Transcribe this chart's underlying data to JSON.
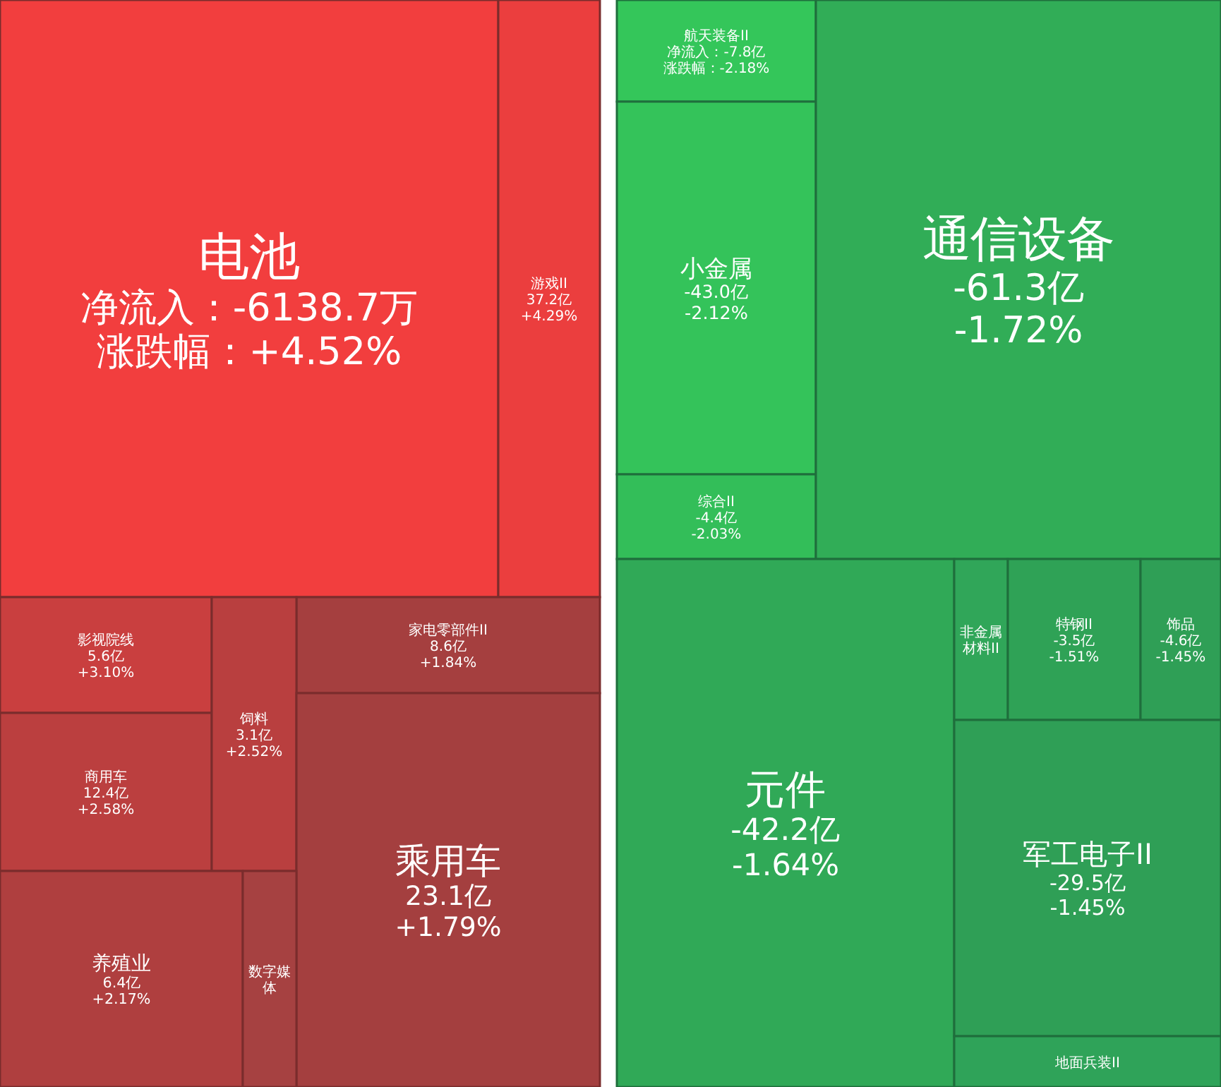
{
  "chart_data": [
    {
      "type": "other",
      "categories": [
        "电池",
        "游戏II",
        "影视院线",
        "家电零部件II",
        "商用车",
        "饲料",
        "乘用车",
        "养殖业",
        "数字媒体"
      ],
      "values": [
        4.52,
        4.29,
        3.1,
        1.84,
        2.58,
        2.52,
        1.79,
        2.17,
        null
      ],
      "value_labels": [
        "涨跌幅：+4.52%",
        "+4.29%",
        "+3.10%",
        "+1.84%",
        "+2.58%",
        "+2.52%",
        "+1.79%",
        "+2.17%",
        null
      ],
      "cell_labels": [
        "净流入：-6138.7万",
        "37.2亿",
        "5.6亿",
        "8.6亿",
        "12.4亿",
        "3.1亿",
        "23.1亿",
        "6.4亿",
        null
      ],
      "colors": [
        "#f23e3e",
        null,
        null,
        null,
        null,
        null,
        "#a43f3f",
        null,
        "#a64141"
      ]
    },
    {
      "type": "other",
      "categories": [
        "航天装备II",
        "小金属",
        "综合II",
        "通信设备",
        "元件",
        "非金属材料II",
        "特钢II",
        "饰品",
        "军工电子II",
        "地面兵装II"
      ],
      "values": [
        -2.18,
        -2.12,
        -2.03,
        -1.72,
        -1.64,
        null,
        -1.51,
        -1.45,
        -1.45,
        null
      ],
      "value_labels": [
        "涨跌幅：-2.18%",
        "-2.12%",
        "-2.03%",
        "-1.72%",
        "-1.64%",
        null,
        "-1.51%",
        "-1.45%",
        "-1.45%",
        null
      ],
      "cell_labels": [
        "净流入：-7.8亿",
        "-43.0亿",
        "-4.4亿",
        "-61.3亿",
        "-42.2亿",
        null,
        "-3.5亿",
        "-4.6亿",
        "-29.5亿",
        null
      ],
      "colors": [
        "#34c65a",
        null,
        null,
        null,
        null,
        "#30a659",
        null,
        null,
        "#2f9f56",
        "#2fa359"
      ]
    }
  ]
}
